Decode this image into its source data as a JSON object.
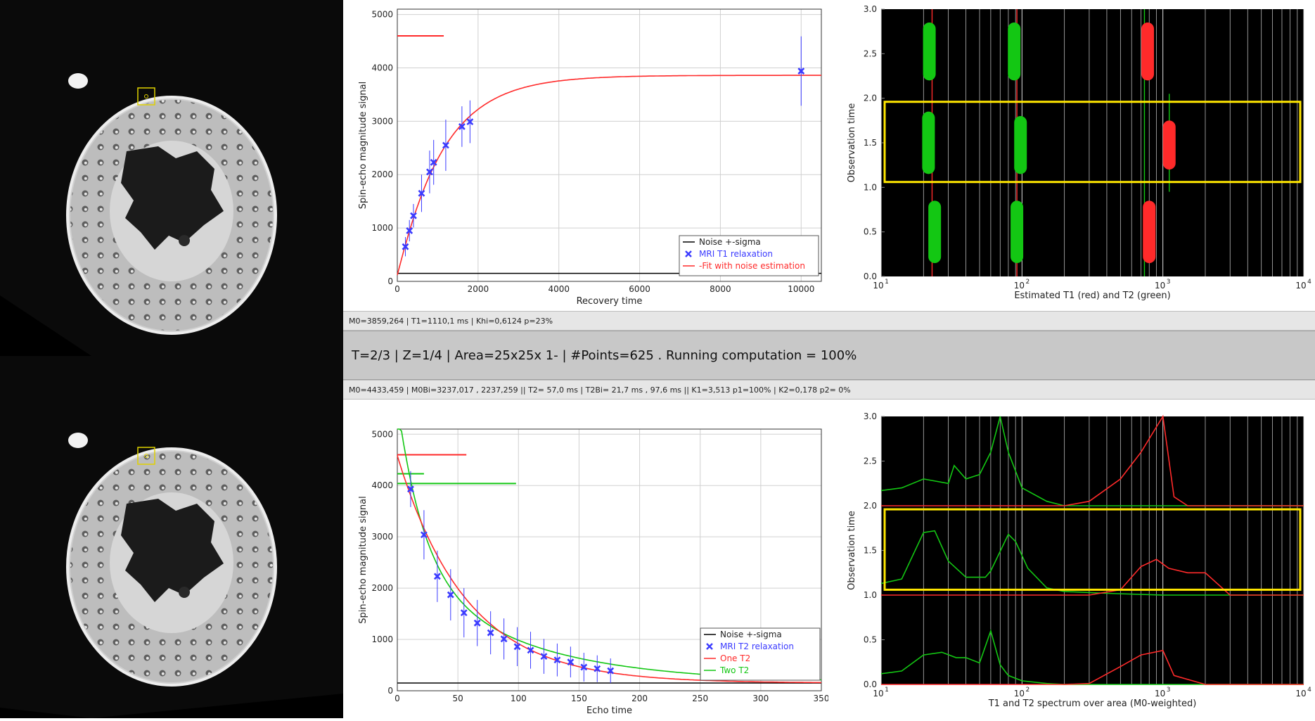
{
  "status": {
    "t1_fit": "M0=3859,264  | T1=1110,1 ms  | Khi=0,6124  p=23%",
    "main": "T=2/3  | Z=1/4 | Area=25x25x 1- | #Points=625 . Running computation = 100%",
    "t2_fit": "M0=4433,459 | M0Bi=3237,017 , 2237,259 || T2= 57,0 ms | T2Bi= 21,7 ms ,  97,6 ms || K1=3,513 p1=100% | K2=0,178 p2= 0%"
  },
  "colors": {
    "red": "#ff2a2a",
    "green": "#13c713",
    "blue": "#3b3bff",
    "yellow": "#ffe600",
    "black": "#000000"
  },
  "chart_data": [
    {
      "id": "t1",
      "type": "scatter",
      "xlabel": "Recovery time",
      "ylabel": "Spin-echo magnitude signal",
      "xlim": [
        0,
        10500
      ],
      "ylim": [
        0,
        5100
      ],
      "xticks": [
        0,
        2000,
        4000,
        6000,
        8000,
        10000
      ],
      "yticks": [
        0,
        1000,
        2000,
        3000,
        4000,
        5000
      ],
      "grid": true,
      "legend_position": "bottom-right",
      "legend": [
        {
          "label": "Noise +-sigma",
          "color": "#000000",
          "kind": "line"
        },
        {
          "label": "MRI T1 relaxation",
          "color": "#3b3bff",
          "kind": "marker"
        },
        {
          "label": "-Fit with noise estimation",
          "color": "#ff2a2a",
          "kind": "line"
        }
      ],
      "points": {
        "x": [
          200,
          300,
          400,
          600,
          800,
          900,
          1200,
          1600,
          1800,
          10000
        ],
        "y": [
          650,
          950,
          1230,
          1650,
          2050,
          2230,
          2550,
          2900,
          2990,
          3940
        ],
        "err": [
          180,
          200,
          220,
          350,
          400,
          420,
          480,
          380,
          400,
          650
        ]
      },
      "fit": {
        "M0": 3860,
        "T1": 1110
      },
      "noise_level": 150,
      "marker_segments": [
        {
          "x": [
            0,
            1150
          ],
          "y": 4600,
          "color": "#ff2a2a"
        }
      ]
    },
    {
      "id": "t2",
      "type": "scatter",
      "xlabel": "Echo time",
      "ylabel": "Spin-echo magnitude signal",
      "xlim": [
        0,
        350
      ],
      "ylim": [
        0,
        5100
      ],
      "xticks": [
        0,
        50,
        100,
        150,
        200,
        250,
        300,
        350
      ],
      "yticks": [
        0,
        1000,
        2000,
        3000,
        4000,
        5000
      ],
      "grid": true,
      "legend_position": "bottom-right",
      "legend": [
        {
          "label": "Noise +-sigma",
          "color": "#000000",
          "kind": "line"
        },
        {
          "label": "MRI T2 relaxation",
          "color": "#3b3bff",
          "kind": "marker"
        },
        {
          "label": "One T2",
          "color": "#ff2a2a",
          "kind": "line"
        },
        {
          "label": "Two T2",
          "color": "#13c713",
          "kind": "line"
        }
      ],
      "points": {
        "x": [
          11,
          22,
          33,
          44,
          55,
          66,
          77,
          88,
          99,
          110,
          121,
          132,
          143,
          154,
          165,
          176
        ],
        "y": [
          3930,
          3040,
          2230,
          1870,
          1520,
          1320,
          1130,
          1010,
          860,
          790,
          670,
          600,
          560,
          460,
          430,
          390
        ],
        "err": [
          350,
          480,
          500,
          500,
          480,
          450,
          420,
          400,
          380,
          360,
          340,
          320,
          300,
          280,
          260,
          240
        ]
      },
      "fit_one": {
        "M0": 4433,
        "T2": 57
      },
      "fit_two": {
        "a1": 3237,
        "t1": 21.7,
        "a2": 2237,
        "t2": 97.6
      },
      "noise_level": 150,
      "marker_segments": [
        {
          "x": [
            0,
            57
          ],
          "y": 4600,
          "color": "#ff2a2a"
        },
        {
          "x": [
            0,
            22
          ],
          "y": 4230,
          "color": "#13c713"
        },
        {
          "x": [
            0,
            98
          ],
          "y": 4040,
          "color": "#13c713"
        }
      ]
    },
    {
      "id": "est",
      "type": "scatter",
      "xlabel": "Estimated T1 (red) and T2 (green)",
      "ylabel": "Observation time",
      "xscale": "log",
      "xlim": [
        10,
        10000
      ],
      "ylim": [
        0,
        3.0
      ],
      "yticks": [
        0.0,
        0.5,
        1.0,
        1.5,
        2.0,
        2.5,
        3.0
      ],
      "xtick_labels": [
        "10",
        "10",
        "10",
        "10"
      ],
      "xtick_exponents": [
        "1",
        "2",
        "3",
        "4"
      ],
      "bars": [
        {
          "x": 22,
          "y": [
            2.2,
            2.85
          ],
          "color": "#13c713"
        },
        {
          "x": 88,
          "y": [
            2.2,
            2.85
          ],
          "color": "#13c713"
        },
        {
          "x": 780,
          "y": [
            2.2,
            2.85
          ],
          "color": "#ff2a2a"
        },
        {
          "x": 21.7,
          "y": [
            1.15,
            1.85
          ],
          "color": "#13c713"
        },
        {
          "x": 97.6,
          "y": [
            1.15,
            1.8
          ],
          "color": "#13c713"
        },
        {
          "x": 1110,
          "y": [
            1.2,
            1.75
          ],
          "color": "#ff2a2a"
        },
        {
          "x": 24,
          "y": [
            0.15,
            0.85
          ],
          "color": "#13c713"
        },
        {
          "x": 92,
          "y": [
            0.15,
            0.85
          ],
          "color": "#13c713"
        },
        {
          "x": 800,
          "y": [
            0.15,
            0.85
          ],
          "color": "#ff2a2a"
        }
      ],
      "vlines": [
        {
          "x": 23,
          "color": "#ff2a2a"
        },
        {
          "x": 92,
          "color": "#ff2a2a"
        },
        {
          "x": 740,
          "color": "#13c713"
        },
        {
          "x": 1110,
          "color": "#13c713",
          "y": [
            0.95,
            2.05
          ]
        }
      ],
      "highlight": {
        "y": [
          1.06,
          1.96
        ],
        "color": "#ffe600"
      }
    },
    {
      "id": "spec",
      "type": "line",
      "xlabel": "T1 and T2 spectrum over area (M0-weighted)",
      "ylabel": "Observation time",
      "xscale": "log",
      "xlim": [
        10,
        10000
      ],
      "ylim": [
        0,
        3.0
      ],
      "yticks": [
        0.0,
        0.5,
        1.0,
        1.5,
        2.0,
        2.5,
        3.0
      ],
      "xtick_labels": [
        "10",
        "10",
        "10",
        "10"
      ],
      "xtick_exponents": [
        "1",
        "2",
        "3",
        "4"
      ],
      "series": [
        {
          "color": "#13c713",
          "x": [
            10,
            14,
            20,
            27,
            34,
            40,
            50,
            60,
            70,
            80,
            100,
            150,
            200,
            400,
            10000
          ],
          "y": [
            0.12,
            0.15,
            0.33,
            0.36,
            0.3,
            0.3,
            0.24,
            0.6,
            0.22,
            0.1,
            0.04,
            0.01,
            0.0,
            0.0,
            0.0
          ]
        },
        {
          "color": "#ff2a2a",
          "x": [
            10,
            200,
            300,
            500,
            700,
            1000,
            1200,
            2000,
            10000
          ],
          "y": [
            0.0,
            0.0,
            0.01,
            0.2,
            0.33,
            0.38,
            0.1,
            0.0,
            0.0
          ]
        },
        {
          "color": "#13c713",
          "x": [
            10,
            14,
            20,
            24,
            30,
            40,
            55,
            60,
            80,
            90,
            110,
            150,
            200,
            400,
            1000,
            10000
          ],
          "y": [
            1.13,
            1.18,
            1.7,
            1.72,
            1.38,
            1.2,
            1.2,
            1.27,
            1.68,
            1.6,
            1.3,
            1.08,
            1.04,
            1.02,
            1.0,
            1.0
          ]
        },
        {
          "color": "#ff2a2a",
          "x": [
            10,
            300,
            500,
            700,
            900,
            1100,
            1500,
            2000,
            3000,
            10000
          ],
          "y": [
            1.0,
            1.0,
            1.06,
            1.32,
            1.4,
            1.3,
            1.25,
            1.25,
            1.0,
            1.0
          ]
        },
        {
          "color": "#13c713",
          "x": [
            10,
            14,
            20,
            30,
            33,
            40,
            50,
            60,
            70,
            80,
            100,
            150,
            200,
            10000
          ],
          "y": [
            2.17,
            2.2,
            2.3,
            2.25,
            2.45,
            2.3,
            2.35,
            2.6,
            3.0,
            2.6,
            2.2,
            2.05,
            2.0,
            2.0
          ]
        },
        {
          "color": "#ff2a2a",
          "x": [
            10,
            200,
            300,
            500,
            700,
            1000,
            1200,
            1500,
            10000
          ],
          "y": [
            2.0,
            2.0,
            2.05,
            2.3,
            2.6,
            3.0,
            2.1,
            2.0,
            2.0
          ]
        }
      ],
      "highlight": {
        "y": [
          1.06,
          1.96
        ],
        "color": "#ffe600"
      }
    }
  ]
}
